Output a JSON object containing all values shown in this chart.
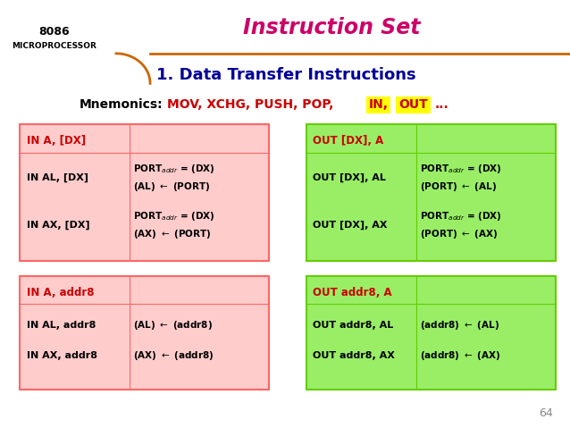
{
  "title": "Instruction Set",
  "subtitle": "1. Data Transfer Instructions",
  "logo_line1": "8086",
  "logo_line2": "MICROPROCESSOR",
  "bg_color": "#ffffff",
  "title_color": "#cc0066",
  "subtitle_color": "#000099",
  "logo_color": "#000000",
  "header_line_color": "#cc6600",
  "pink_bg": "#ffcccc",
  "green_bg": "#99ee66",
  "green_border": "#66cc00",
  "pink_border": "#ff6666",
  "red_text": "#cc0000",
  "black_text": "#000000",
  "yellow_highlight": "#ffff00",
  "page_num": "64"
}
